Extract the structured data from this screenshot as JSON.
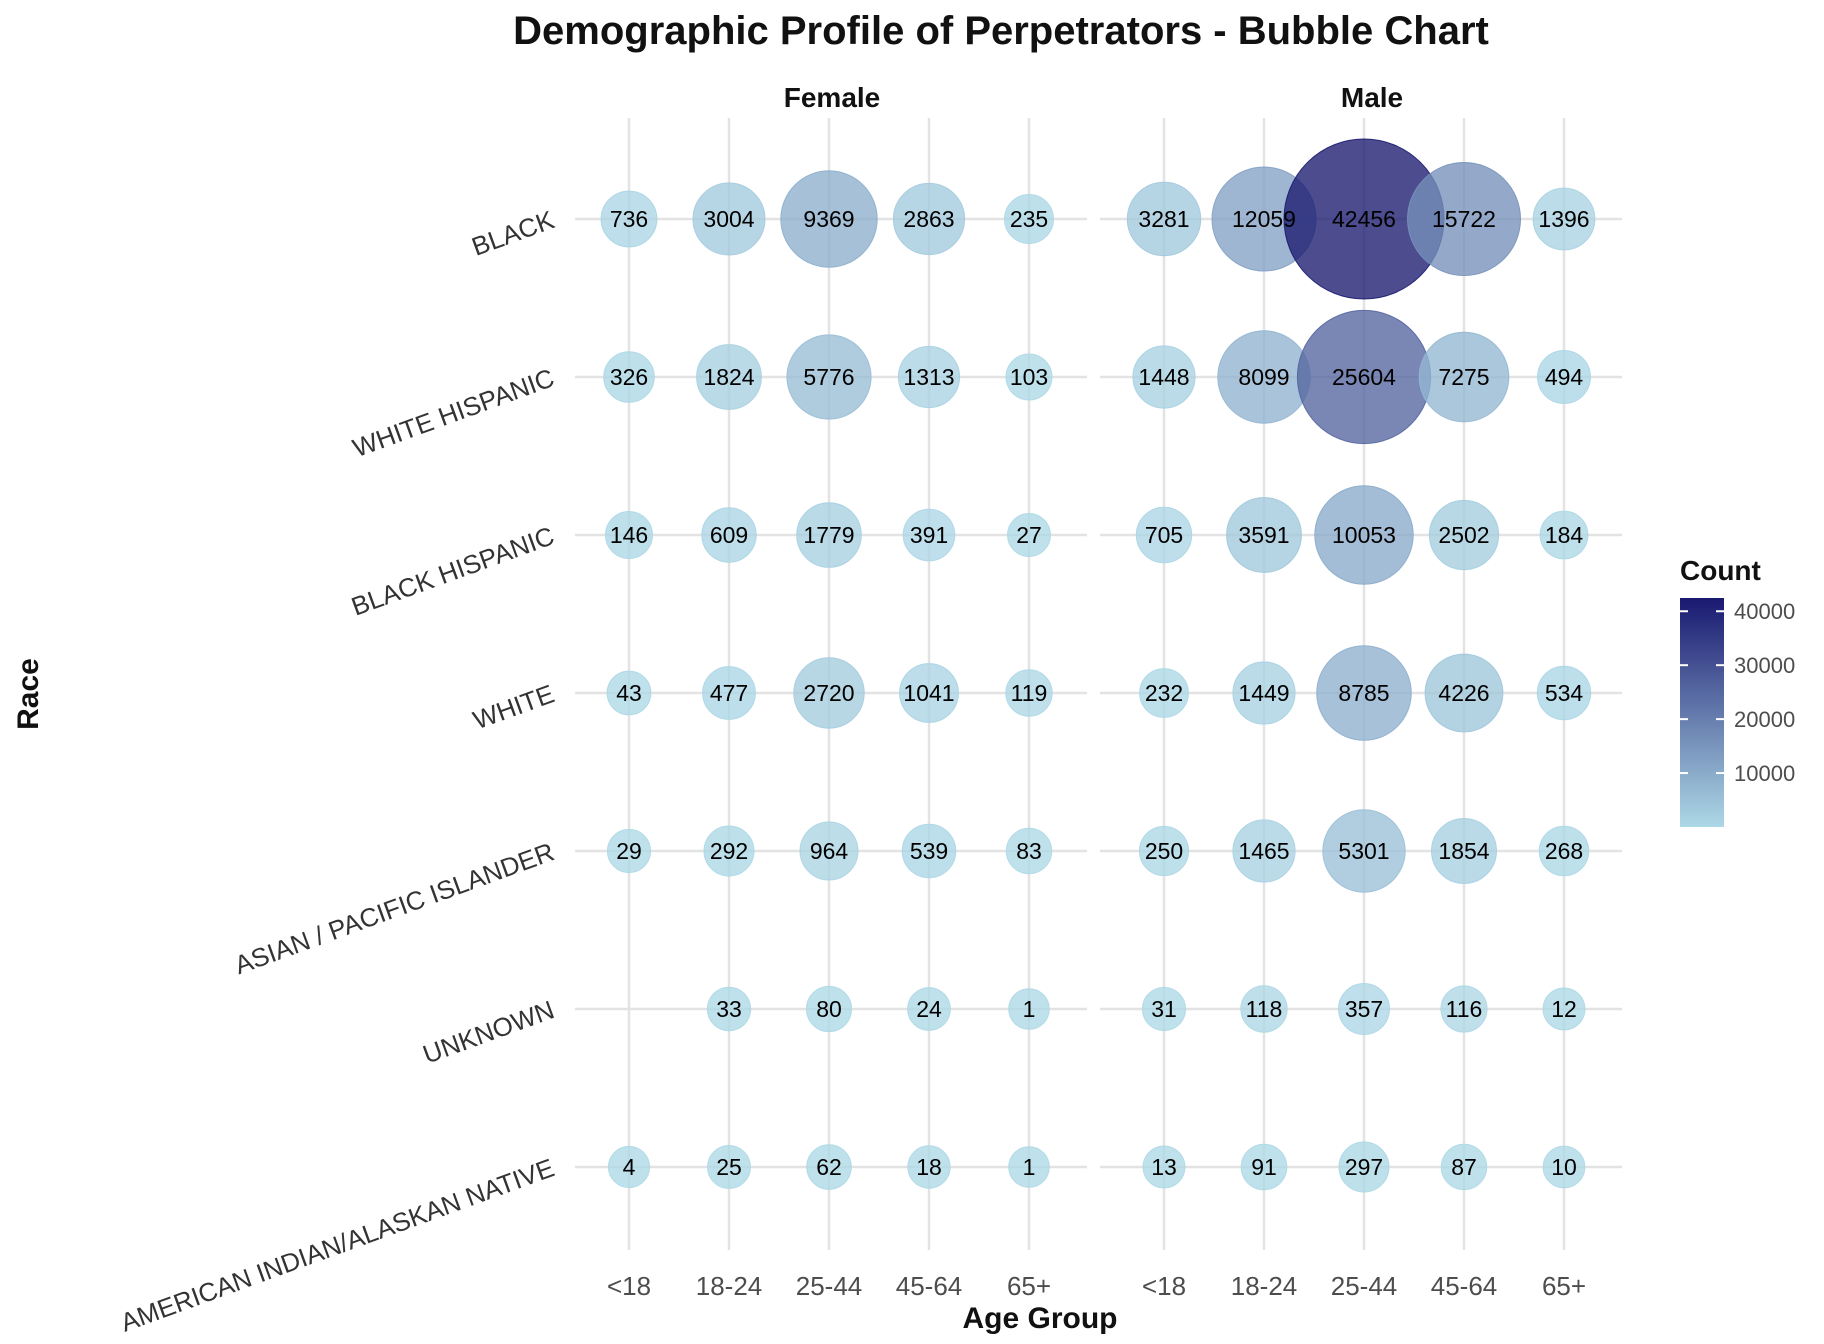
{
  "chart_data": {
    "type": "scatter",
    "title": "Demographic Profile of Perpetrators - Bubble Chart",
    "xlabel": "Age Group",
    "ylabel": "Race",
    "facets": [
      "Female",
      "Male"
    ],
    "age_groups": [
      "<18",
      "18-24",
      "25-44",
      "45-64",
      "65+"
    ],
    "races": [
      "BLACK",
      "WHITE HISPANIC",
      "BLACK HISPANIC",
      "WHITE",
      "ASIAN / PACIFIC ISLANDER",
      "UNKNOWN",
      "AMERICAN INDIAN/ALASKAN NATIVE"
    ],
    "counts": {
      "Female": [
        [
          736,
          3004,
          9369,
          2863,
          235
        ],
        [
          326,
          1824,
          5776,
          1313,
          103
        ],
        [
          146,
          609,
          1779,
          391,
          27
        ],
        [
          43,
          477,
          2720,
          1041,
          119
        ],
        [
          29,
          292,
          964,
          539,
          83
        ],
        [
          null,
          33,
          80,
          24,
          1
        ],
        [
          4,
          25,
          62,
          18,
          1
        ]
      ],
      "Male": [
        [
          3281,
          12059,
          42456,
          15722,
          1396
        ],
        [
          1448,
          8099,
          25604,
          7275,
          494
        ],
        [
          705,
          3591,
          10053,
          2502,
          184
        ],
        [
          232,
          1449,
          8785,
          4226,
          534
        ],
        [
          250,
          1465,
          5301,
          1854,
          268
        ],
        [
          31,
          118,
          357,
          116,
          12
        ],
        [
          13,
          91,
          297,
          87,
          10
        ]
      ]
    },
    "legend": {
      "title": "Count",
      "ticks": [
        10000,
        20000,
        30000,
        40000
      ],
      "range": [
        1,
        42456
      ],
      "low_color": "#add8e6",
      "high_color": "#191970",
      "placement": "right"
    },
    "grid": true
  }
}
